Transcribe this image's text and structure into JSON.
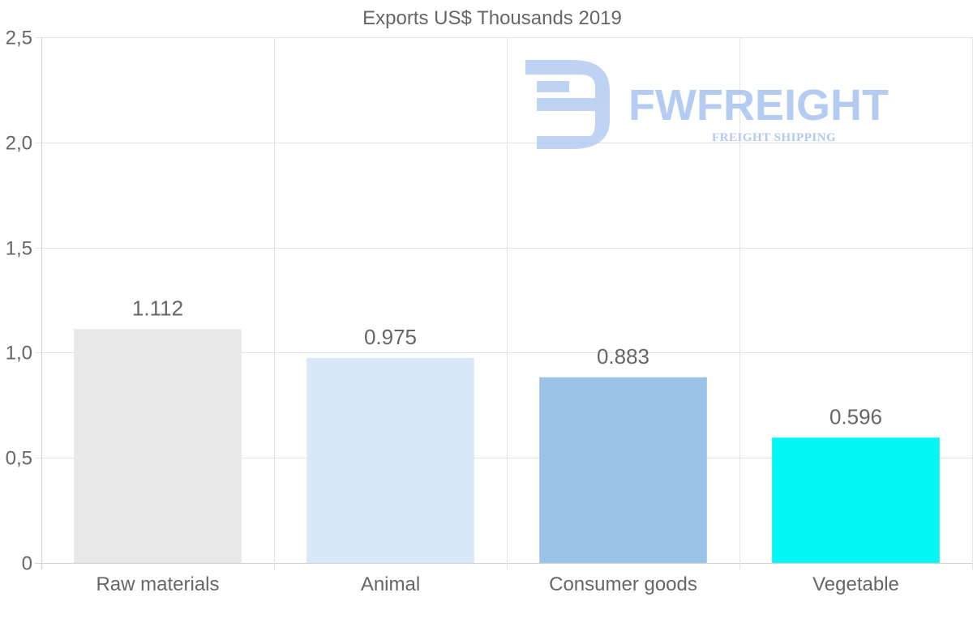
{
  "watermark": {
    "name": "FWFREIGHT",
    "subtitle": "FREIGHT SHIPPING",
    "color": "#a9c4f0"
  },
  "chart_data": {
    "type": "bar",
    "title": "Exports US$ Thousands 2019",
    "xlabel": "",
    "ylabel": "",
    "categories": [
      "Raw materials",
      "Animal",
      "Consumer goods",
      "Vegetable"
    ],
    "values": [
      1.112,
      0.975,
      0.883,
      0.596
    ],
    "value_labels": [
      "1.112",
      "0.975",
      "0.883",
      "0.596"
    ],
    "colors": [
      "#e8e8e8",
      "#d8e8f9",
      "#9ac3e6",
      "#04f7f7"
    ],
    "ylim": [
      0,
      2.5
    ],
    "yticks": [
      0,
      0.5,
      1.0,
      1.5,
      2.0,
      2.5
    ],
    "ytick_labels": [
      "0",
      "0,5",
      "1,0",
      "1,5",
      "2,0",
      "2,5"
    ],
    "grid": true,
    "legend": "none"
  }
}
